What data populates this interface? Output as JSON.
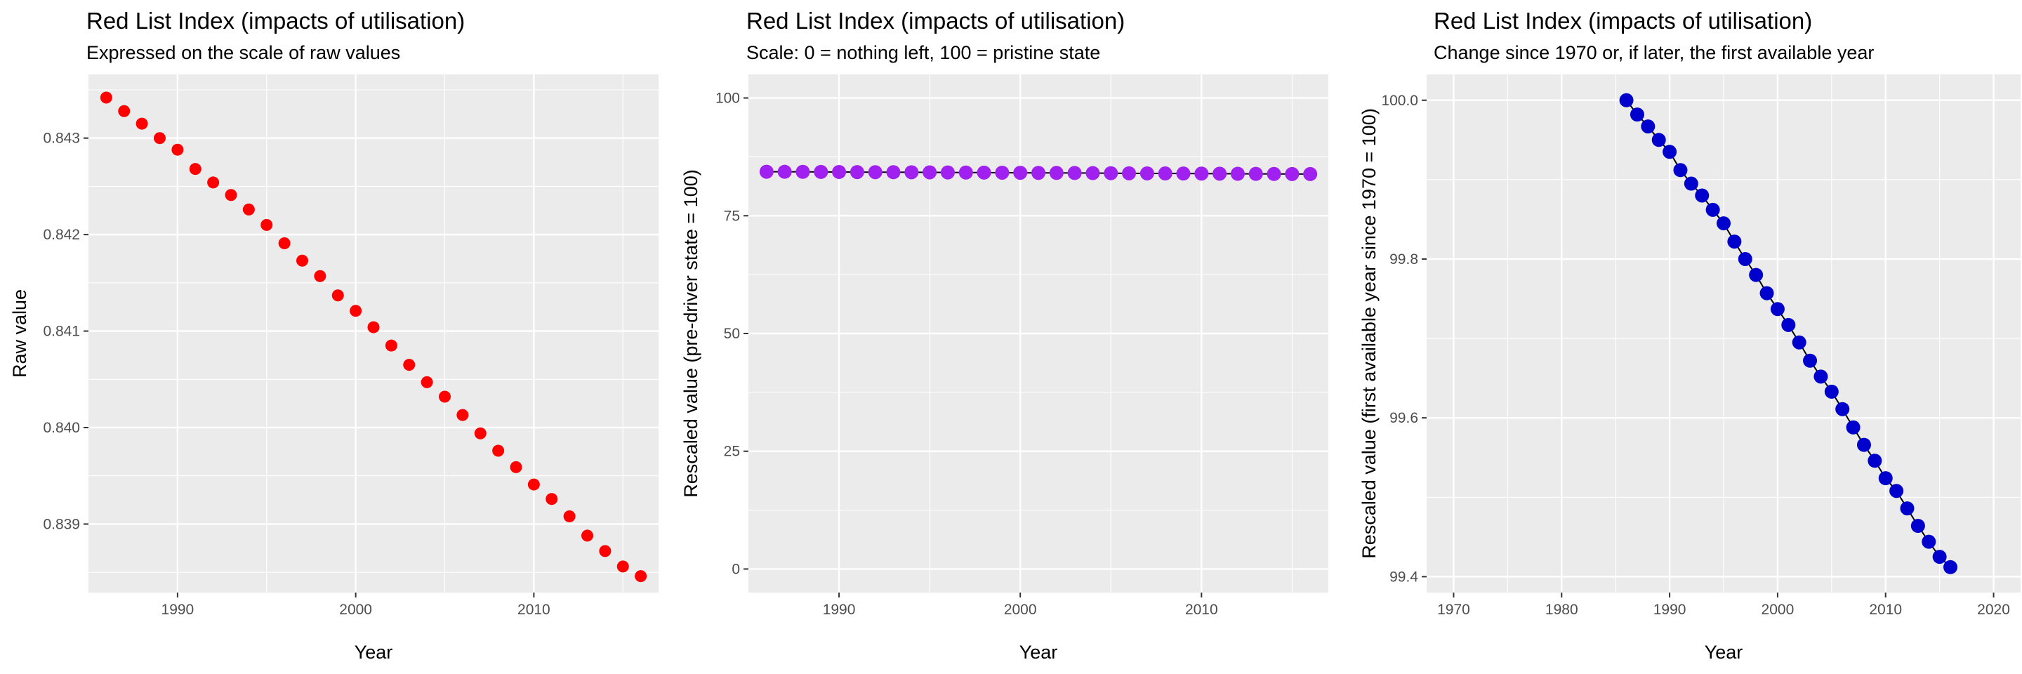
{
  "chart_data": [
    {
      "type": "scatter",
      "title": "Red List Index (impacts of utilisation)",
      "subtitle": "Expressed on the scale of raw values",
      "xlabel": "Year",
      "ylabel": "Raw value",
      "color": "#ff0000",
      "connect_line": false,
      "xlim": [
        1985,
        2017
      ],
      "ylim": [
        0.83829,
        0.84366
      ],
      "xticks": [
        1990,
        2000,
        2010
      ],
      "yticks": [
        0.839,
        0.84,
        0.841,
        0.842,
        0.843
      ],
      "ytick_labels": [
        "0.839",
        "0.840",
        "0.841",
        "0.842",
        "0.843"
      ],
      "x": [
        1986,
        1987,
        1988,
        1989,
        1990,
        1991,
        1992,
        1993,
        1994,
        1995,
        1996,
        1997,
        1998,
        1999,
        2000,
        2001,
        2002,
        2003,
        2004,
        2005,
        2006,
        2007,
        2008,
        2009,
        2010,
        2011,
        2012,
        2013,
        2014,
        2015,
        2016
      ],
      "y": [
        0.84342,
        0.84328,
        0.84315,
        0.843,
        0.84288,
        0.84268,
        0.84254,
        0.84241,
        0.84226,
        0.8421,
        0.84191,
        0.84173,
        0.84157,
        0.84137,
        0.84121,
        0.84104,
        0.84085,
        0.84065,
        0.84047,
        0.84032,
        0.84013,
        0.83994,
        0.83976,
        0.83959,
        0.83941,
        0.83926,
        0.83908,
        0.83888,
        0.83872,
        0.83856,
        0.83846
      ]
    },
    {
      "type": "line",
      "title": "Red List Index (impacts of utilisation)",
      "subtitle": "Scale: 0 = nothing left, 100 = pristine state",
      "xlabel": "Year",
      "ylabel": "Rescaled value (pre-driver state = 100)",
      "color": "#a020f0",
      "connect_line": true,
      "xlim": [
        1985,
        2017
      ],
      "ylim": [
        -5,
        105
      ],
      "xticks": [
        1990,
        2000,
        2010
      ],
      "yticks": [
        0,
        25,
        50,
        75,
        100
      ],
      "ytick_labels": [
        "0",
        "25",
        "50",
        "75",
        "100"
      ],
      "x": [
        1986,
        1987,
        1988,
        1989,
        1990,
        1991,
        1992,
        1993,
        1994,
        1995,
        1996,
        1997,
        1998,
        1999,
        2000,
        2001,
        2002,
        2003,
        2004,
        2005,
        2006,
        2007,
        2008,
        2009,
        2010,
        2011,
        2012,
        2013,
        2014,
        2015,
        2016
      ],
      "y": [
        84.34,
        84.33,
        84.32,
        84.3,
        84.29,
        84.27,
        84.25,
        84.24,
        84.23,
        84.21,
        84.19,
        84.17,
        84.16,
        84.14,
        84.12,
        84.1,
        84.09,
        84.07,
        84.05,
        84.03,
        84.01,
        83.99,
        83.98,
        83.96,
        83.94,
        83.93,
        83.91,
        83.89,
        83.87,
        83.86,
        83.85
      ]
    },
    {
      "type": "line",
      "title": "Red List Index (impacts of utilisation)",
      "subtitle": "Change since 1970 or, if later, the first available year",
      "xlabel": "Year",
      "ylabel": "Rescaled value (first available year since 1970 = 100)",
      "color": "#0000cd",
      "connect_line": true,
      "xlim": [
        1967.5,
        2022.5
      ],
      "ylim": [
        99.38,
        100.0325
      ],
      "xticks": [
        1970,
        1980,
        1990,
        2000,
        2010,
        2020
      ],
      "yticks": [
        99.4,
        99.6,
        99.8,
        100.0
      ],
      "ytick_labels": [
        "99.4",
        "99.6",
        "99.8",
        "100.0"
      ],
      "x": [
        1986,
        1987,
        1988,
        1989,
        1990,
        1991,
        1992,
        1993,
        1994,
        1995,
        1996,
        1997,
        1998,
        1999,
        2000,
        2001,
        2002,
        2003,
        2004,
        2005,
        2006,
        2007,
        2008,
        2009,
        2010,
        2011,
        2012,
        2013,
        2014,
        2015,
        2016
      ],
      "y": [
        100.0,
        99.982,
        99.967,
        99.95,
        99.935,
        99.912,
        99.895,
        99.88,
        99.862,
        99.845,
        99.822,
        99.8,
        99.78,
        99.757,
        99.737,
        99.717,
        99.695,
        99.672,
        99.652,
        99.633,
        99.611,
        99.588,
        99.566,
        99.546,
        99.524,
        99.508,
        99.486,
        99.464,
        99.444,
        99.425,
        99.412
      ]
    }
  ]
}
